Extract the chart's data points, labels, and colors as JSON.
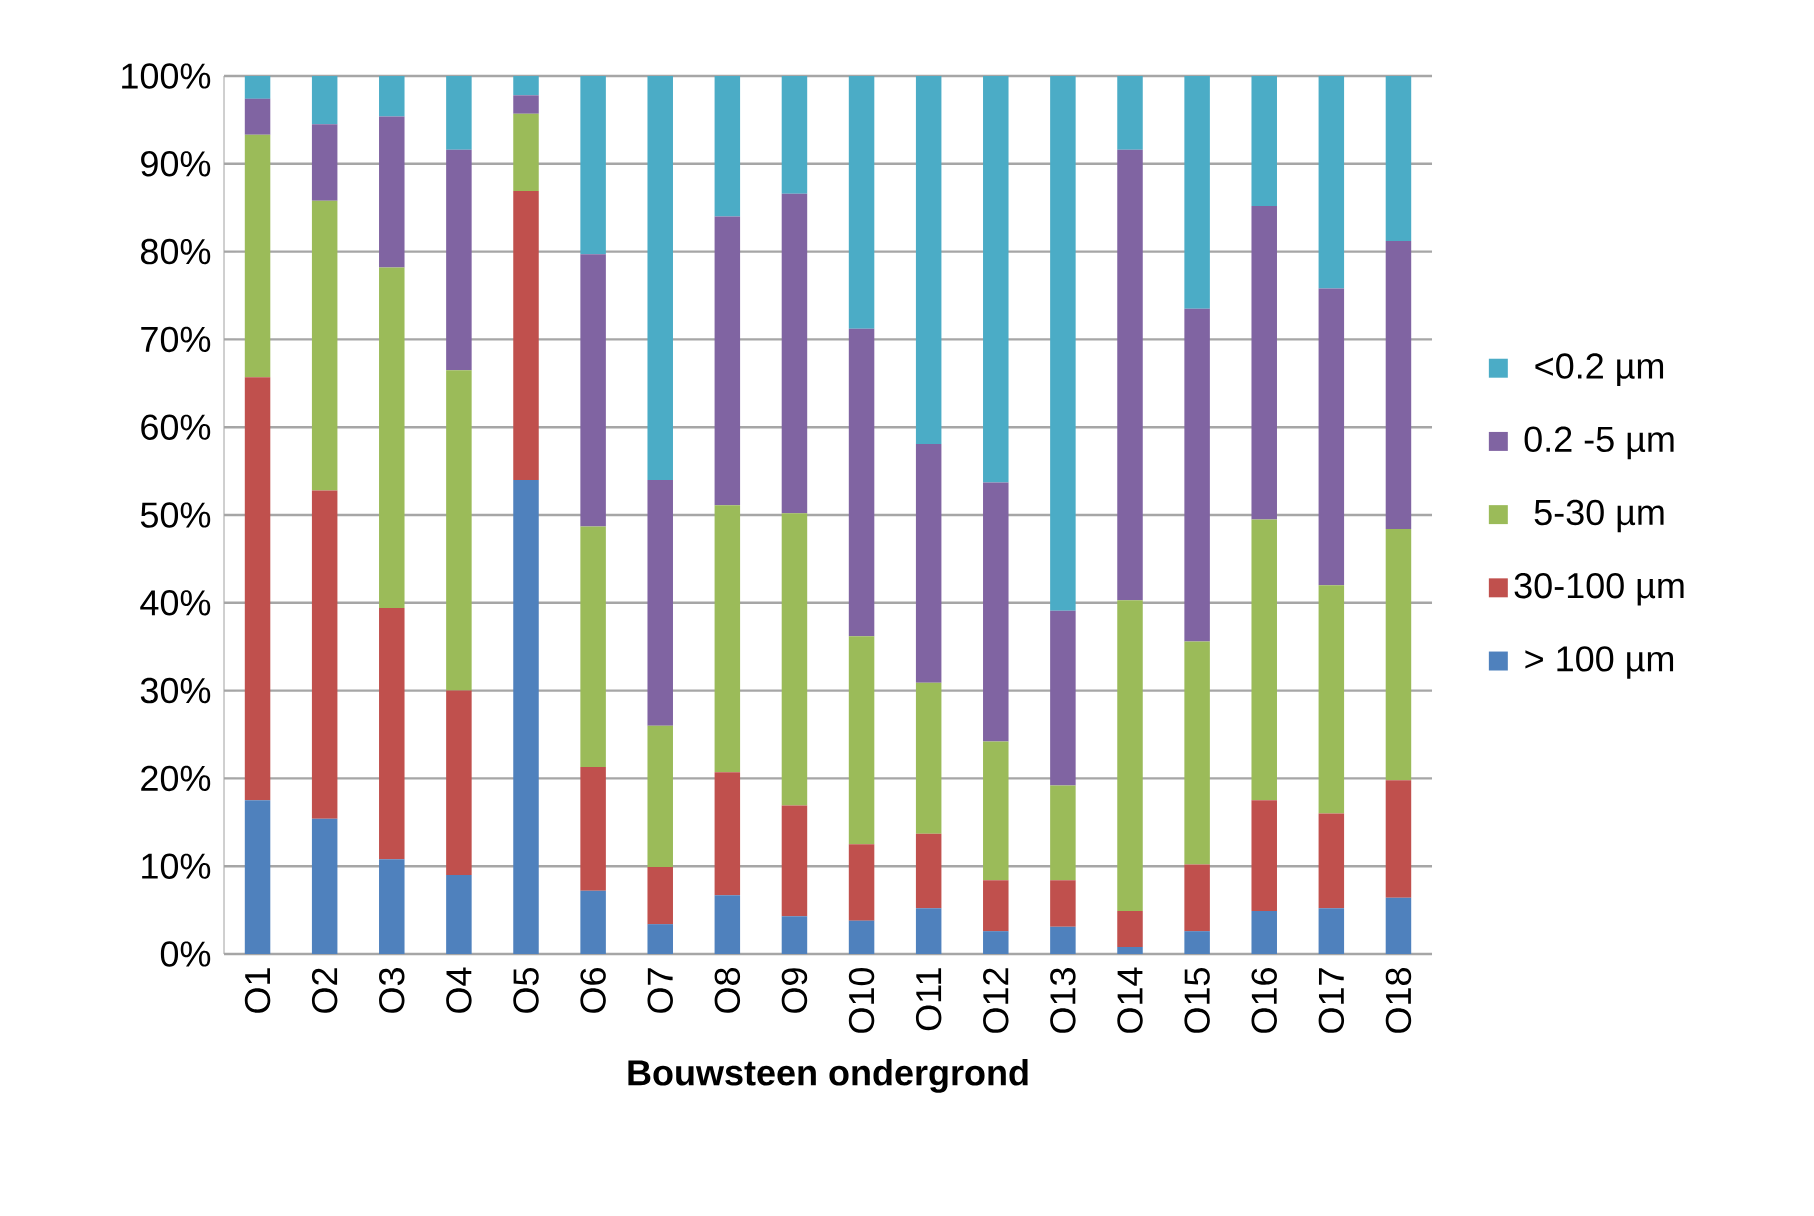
{
  "chart_data": {
    "type": "bar",
    "stacked": true,
    "xlabel": "Bouwsteen ondergrond",
    "categories": [
      "O1",
      "O2",
      "O3",
      "O4",
      "O5",
      "O6",
      "O7",
      "O8",
      "O9",
      "O10",
      "O11",
      "O12",
      "O13",
      "O14",
      "O15",
      "O16",
      "O17",
      "O18"
    ],
    "series": [
      {
        "name": "> 100 µm",
        "color": "#4f81bd",
        "values": [
          17.5,
          15.4,
          10.8,
          9.0,
          54.0,
          7.2,
          3.4,
          6.7,
          4.3,
          3.8,
          5.2,
          2.6,
          3.1,
          0.8,
          2.6,
          4.9,
          5.2,
          6.4
        ]
      },
      {
        "name": "30-100 µm",
        "color": "#c0504d",
        "values": [
          48.2,
          37.4,
          28.6,
          21.0,
          32.9,
          14.1,
          6.5,
          14.0,
          12.6,
          8.7,
          8.5,
          5.8,
          5.3,
          4.1,
          7.6,
          12.6,
          10.8,
          13.4
        ]
      },
      {
        "name": "5-30 µm",
        "color": "#9bbb59",
        "values": [
          27.6,
          33.0,
          38.8,
          36.5,
          8.8,
          27.4,
          16.1,
          30.4,
          33.3,
          23.7,
          17.2,
          15.8,
          10.8,
          35.4,
          25.4,
          32.0,
          26.0,
          28.6
        ]
      },
      {
        "name": "0.2 -5 µm",
        "color": "#8064a2",
        "values": [
          4.1,
          8.7,
          17.2,
          25.1,
          2.1,
          31.0,
          28.0,
          32.9,
          36.4,
          35.0,
          27.2,
          29.5,
          19.9,
          51.3,
          37.9,
          35.7,
          33.8,
          32.8
        ]
      },
      {
        "name": "<0.2 µm",
        "color": "#4bacc6",
        "values": [
          2.6,
          5.5,
          4.6,
          8.4,
          2.2,
          20.3,
          46.0,
          16.0,
          13.4,
          28.8,
          41.9,
          46.3,
          60.9,
          8.4,
          26.5,
          14.8,
          24.2,
          18.8
        ]
      }
    ],
    "ylim": [
      0,
      100
    ],
    "yticks": [
      {
        "value": 0,
        "label": "0%"
      },
      {
        "value": 10,
        "label": "10%"
      },
      {
        "value": 20,
        "label": "20%"
      },
      {
        "value": 30,
        "label": "30%"
      },
      {
        "value": 40,
        "label": "40%"
      },
      {
        "value": 50,
        "label": "50%"
      },
      {
        "value": 60,
        "label": "60%"
      },
      {
        "value": 70,
        "label": "70%"
      },
      {
        "value": 80,
        "label": "80%"
      },
      {
        "value": 90,
        "label": "90%"
      },
      {
        "value": 100,
        "label": "100%"
      }
    ],
    "grid": "y",
    "legend": "right"
  }
}
